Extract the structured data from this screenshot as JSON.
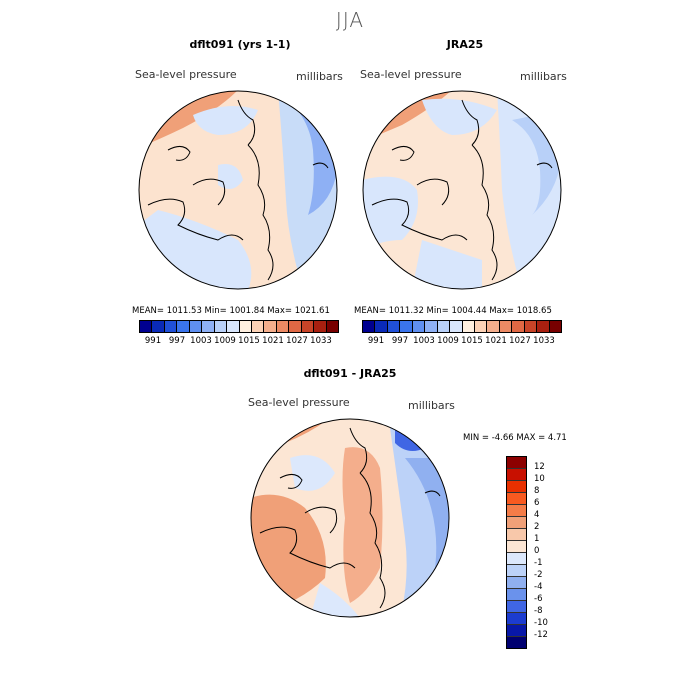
{
  "figure": {
    "season": "JJA"
  },
  "panels": {
    "model": {
      "title": "dflt091 (yrs 1-1)",
      "variable_label": "Sea-level pressure",
      "units_label": "millibars",
      "stats": "MEAN= 1011.53   Min= 1001.84   Max= 1021.61",
      "mean": 1011.53,
      "min": 1001.84,
      "max": 1021.61
    },
    "obs": {
      "title": "JRA25",
      "variable_label": "Sea-level pressure",
      "units_label": "millibars",
      "stats": "MEAN= 1011.32   Min= 1004.44   Max= 1018.65",
      "mean": 1011.32,
      "min": 1004.44,
      "max": 1018.65
    },
    "diff": {
      "title": "dflt091 - JRA25",
      "variable_label": "Sea-level pressure",
      "units_label": "millibars",
      "stats": "MIN =    -4.66  MAX =     4.71",
      "min": -4.66,
      "max": 4.71
    }
  },
  "legend_abs": {
    "ticks": [
      "991",
      "997",
      "1003",
      "1009",
      "1015",
      "1021",
      "1027",
      "1033"
    ],
    "colors": [
      "#000090",
      "#0a2ab8",
      "#2050d8",
      "#3a74ec",
      "#5f8ff0",
      "#8eb0f4",
      "#b8d0f8",
      "#d8e6fc",
      "#fff0e0",
      "#fcd2b6",
      "#f4ae8c",
      "#ec8a64",
      "#e06844",
      "#c84428",
      "#a82010",
      "#780000"
    ]
  },
  "legend_diff": {
    "ticks": [
      "12",
      "10",
      "8",
      "6",
      "4",
      "2",
      "1",
      "0",
      "-1",
      "-2",
      "-4",
      "-6",
      "-8",
      "-10",
      "-12"
    ],
    "colors": [
      "#8c0000",
      "#c81000",
      "#e83000",
      "#f85a20",
      "#f47c48",
      "#f0a078",
      "#f8c8aa",
      "#fce6d4",
      "#dce8fc",
      "#bcd2f8",
      "#90b0f0",
      "#6a92ec",
      "#4066e4",
      "#1c3cd0",
      "#0818a8",
      "#000070"
    ]
  },
  "chart_data": [
    {
      "type": "heatmap",
      "title": "dflt091 (yrs 1-1)",
      "variable": "Sea-level pressure",
      "units": "millibars",
      "projection": "north polar stereographic",
      "summary": {
        "mean": 1011.53,
        "min": 1001.84,
        "max": 1021.61
      }
    },
    {
      "type": "heatmap",
      "title": "JRA25",
      "variable": "Sea-level pressure",
      "units": "millibars",
      "projection": "north polar stereographic",
      "summary": {
        "mean": 1011.32,
        "min": 1004.44,
        "max": 1018.65
      }
    },
    {
      "type": "heatmap",
      "title": "dflt091 - JRA25",
      "variable": "Sea-level pressure",
      "units": "millibars",
      "projection": "north polar stereographic",
      "summary": {
        "min": -4.66,
        "max": 4.71
      }
    }
  ]
}
